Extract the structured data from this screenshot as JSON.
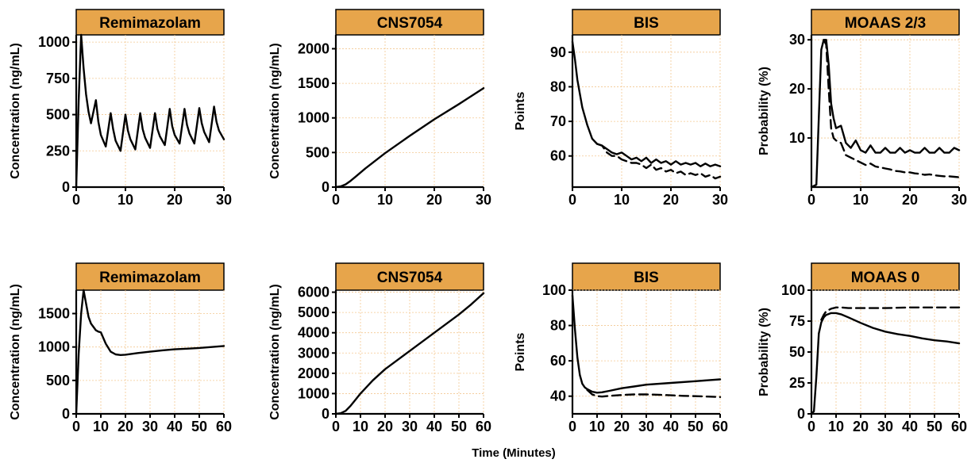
{
  "figure": {
    "xlabel": "Time (Minutes)",
    "strip_color": "#E7A54B",
    "grid_color": "#F3C890"
  },
  "chart_data": [
    {
      "type": "line",
      "title": "Remimazolam",
      "ylabel": "Concentration (ng/mL)",
      "xlim": [
        0,
        30
      ],
      "ylim": [
        0,
        1050
      ],
      "xticks": [
        0,
        10,
        20,
        30
      ],
      "yticks": [
        0,
        250,
        500,
        750,
        1000
      ],
      "xtick_labels": [
        "0",
        "10",
        "20",
        "30"
      ],
      "ytick_labels": [
        "0",
        "250",
        "500",
        "750",
        "1000"
      ],
      "grid": true,
      "series": [
        {
          "style": "solid",
          "x": [
            0,
            0.5,
            1,
            1.5,
            2,
            2.5,
            3,
            4,
            4.5,
            5,
            6,
            7,
            7.5,
            8,
            9,
            10,
            10.5,
            11,
            12,
            13,
            13.5,
            14,
            15,
            16,
            16.5,
            17,
            18,
            19,
            19.5,
            20,
            21,
            22,
            22.5,
            23,
            24,
            25,
            25.5,
            26,
            27,
            28,
            28.5,
            29,
            30
          ],
          "y": [
            0,
            600,
            1050,
            820,
            640,
            520,
            440,
            600,
            450,
            360,
            280,
            510,
            400,
            320,
            250,
            500,
            390,
            330,
            260,
            510,
            400,
            340,
            270,
            510,
            400,
            350,
            290,
            540,
            420,
            360,
            300,
            540,
            430,
            370,
            300,
            545,
            440,
            380,
            310,
            555,
            450,
            390,
            330
          ]
        }
      ]
    },
    {
      "type": "line",
      "title": "CNS7054",
      "ylabel": "Concentration (ng/mL)",
      "xlim": [
        0,
        30
      ],
      "ylim": [
        0,
        2200
      ],
      "xticks": [
        0,
        10,
        20,
        30
      ],
      "yticks": [
        0,
        500,
        1000,
        1500,
        2000
      ],
      "xtick_labels": [
        "0",
        "10",
        "20",
        "30"
      ],
      "ytick_labels": [
        "0",
        "500",
        "1000",
        "1500",
        "2000"
      ],
      "grid": true,
      "series": [
        {
          "style": "solid",
          "x": [
            0,
            1,
            2,
            3,
            4,
            6,
            8,
            10,
            15,
            20,
            25,
            30
          ],
          "y": [
            0,
            10,
            40,
            90,
            150,
            270,
            380,
            490,
            740,
            980,
            1200,
            1430
          ]
        }
      ]
    },
    {
      "type": "line",
      "title": "BIS",
      "ylabel": "Points",
      "xlim": [
        0,
        30
      ],
      "ylim": [
        51,
        95
      ],
      "xticks": [
        0,
        10,
        20,
        30
      ],
      "yticks": [
        60,
        70,
        80,
        90
      ],
      "xtick_labels": [
        "0",
        "10",
        "20",
        "30"
      ],
      "ytick_labels": [
        "60",
        "70",
        "80",
        "90"
      ],
      "grid": true,
      "series": [
        {
          "style": "solid",
          "x": [
            0,
            0.5,
            1,
            1.5,
            2,
            3,
            4,
            5,
            6,
            7,
            8,
            9,
            10,
            11,
            12,
            13,
            14,
            15,
            16,
            17,
            18,
            19,
            20,
            21,
            22,
            23,
            24,
            25,
            26,
            27,
            28,
            29,
            30
          ],
          "y": [
            93,
            88,
            82,
            78,
            74,
            69,
            65,
            63.5,
            63,
            62,
            61,
            60.5,
            61,
            60,
            59,
            59.5,
            58.5,
            59.5,
            58,
            59,
            58,
            58.5,
            57.5,
            58.5,
            57.5,
            58,
            57.5,
            58,
            57,
            57.8,
            57,
            57.5,
            57
          ]
        },
        {
          "style": "dashed",
          "x": [
            5,
            6,
            7,
            8,
            9,
            10,
            11,
            12,
            13,
            14,
            15,
            16,
            17,
            18,
            19,
            20,
            21,
            22,
            23,
            24,
            25,
            26,
            27,
            28,
            29,
            30
          ],
          "y": [
            63.5,
            63,
            61,
            60,
            60,
            59,
            58.5,
            58,
            58,
            57.5,
            56.5,
            57.5,
            56,
            56.5,
            55.5,
            56,
            55,
            55.5,
            54.5,
            55,
            54.5,
            55,
            54,
            54.5,
            53.5,
            54
          ]
        }
      ]
    },
    {
      "type": "line",
      "title": "MOAAS 2/3",
      "ylabel": "Probability (%)",
      "xlim": [
        0,
        30
      ],
      "ylim": [
        0,
        31
      ],
      "xticks": [
        0,
        10,
        20,
        30
      ],
      "yticks": [
        10,
        20,
        30
      ],
      "xtick_labels": [
        "0",
        "10",
        "20",
        "30"
      ],
      "ytick_labels": [
        "10",
        "20",
        "30"
      ],
      "grid": true,
      "series": [
        {
          "style": "solid",
          "x": [
            0,
            1,
            2,
            2.5,
            3,
            3.5,
            4,
            4.5,
            5,
            6,
            7,
            8,
            9,
            10,
            11,
            12,
            13,
            14,
            15,
            16,
            17,
            18,
            19,
            20,
            21,
            22,
            23,
            24,
            25,
            26,
            27,
            28,
            29,
            30
          ],
          "y": [
            0,
            0.5,
            28,
            30,
            30,
            25,
            17,
            14,
            12,
            12.5,
            9,
            8,
            9.5,
            7.5,
            7,
            8.5,
            7,
            7,
            8,
            7,
            7,
            8,
            7,
            7.5,
            7,
            7,
            8,
            7,
            7,
            8,
            7,
            7,
            8,
            7.5
          ]
        },
        {
          "style": "dashed",
          "x": [
            2.5,
            3,
            3.5,
            4,
            4.5,
            5,
            6,
            7,
            8,
            9,
            10,
            11,
            12,
            13,
            14,
            15,
            16,
            17,
            18,
            19,
            20,
            21,
            22,
            23,
            24,
            25,
            26,
            27,
            28,
            29,
            30
          ],
          "y": [
            30,
            29,
            20,
            12,
            10,
            9.5,
            9,
            6.5,
            6,
            5.5,
            5,
            4.5,
            4.8,
            4.2,
            4,
            3.8,
            3.6,
            3.3,
            3.2,
            3,
            3,
            2.8,
            2.7,
            2.5,
            2.6,
            2.4,
            2.3,
            2.2,
            2.2,
            2.1,
            2
          ]
        }
      ]
    },
    {
      "type": "line",
      "title": "Remimazolam",
      "ylabel": "Concentration (ng/mL)",
      "xlim": [
        0,
        60
      ],
      "ylim": [
        0,
        1850
      ],
      "xticks": [
        0,
        10,
        20,
        30,
        40,
        50,
        60
      ],
      "yticks": [
        0,
        500,
        1000,
        1500
      ],
      "xtick_labels": [
        "0",
        "10",
        "20",
        "30",
        "40",
        "50",
        "60"
      ],
      "ytick_labels": [
        "0",
        "500",
        "1000",
        "1500"
      ],
      "grid": true,
      "series": [
        {
          "style": "solid",
          "x": [
            0,
            1,
            2,
            3,
            4,
            5,
            6,
            7,
            8,
            9,
            10,
            12,
            14,
            16,
            18,
            20,
            25,
            30,
            35,
            40,
            45,
            50,
            55,
            60
          ],
          "y": [
            0,
            900,
            1500,
            1850,
            1650,
            1450,
            1350,
            1300,
            1250,
            1230,
            1220,
            1050,
            930,
            890,
            880,
            885,
            910,
            930,
            950,
            965,
            975,
            985,
            1000,
            1015
          ]
        }
      ]
    },
    {
      "type": "line",
      "title": "CNS7054",
      "ylabel": "Concentration (ng/mL)",
      "xlim": [
        0,
        60
      ],
      "ylim": [
        0,
        6100
      ],
      "xticks": [
        0,
        10,
        20,
        30,
        40,
        50,
        60
      ],
      "yticks": [
        0,
        1000,
        2000,
        3000,
        4000,
        5000,
        6000
      ],
      "xtick_labels": [
        "0",
        "10",
        "20",
        "30",
        "40",
        "50",
        "60"
      ],
      "ytick_labels": [
        "0",
        "1000",
        "2000",
        "3000",
        "4000",
        "5000",
        "6000"
      ],
      "grid": true,
      "series": [
        {
          "style": "solid",
          "x": [
            0,
            2,
            4,
            6,
            8,
            10,
            15,
            20,
            25,
            30,
            35,
            40,
            45,
            50,
            55,
            60
          ],
          "y": [
            0,
            30,
            150,
            400,
            700,
            1000,
            1650,
            2200,
            2650,
            3100,
            3550,
            4000,
            4450,
            4900,
            5400,
            5950
          ]
        }
      ]
    },
    {
      "type": "line",
      "title": "BIS",
      "ylabel": "Points",
      "xlim": [
        0,
        60
      ],
      "ylim": [
        30,
        100
      ],
      "xticks": [
        0,
        10,
        20,
        30,
        40,
        50,
        60
      ],
      "yticks": [
        40,
        60,
        80,
        100
      ],
      "xtick_labels": [
        "0",
        "10",
        "20",
        "30",
        "40",
        "50",
        "60"
      ],
      "ytick_labels": [
        "40",
        "60",
        "80",
        "100"
      ],
      "grid": true,
      "series": [
        {
          "style": "solid",
          "x": [
            0,
            1,
            2,
            3,
            4,
            5,
            6,
            8,
            10,
            12,
            15,
            20,
            25,
            30,
            40,
            50,
            60
          ],
          "y": [
            97,
            78,
            62,
            52,
            47,
            45,
            44,
            42.5,
            42,
            42.2,
            43,
            44.5,
            45.5,
            46.5,
            47.5,
            48.5,
            49.5
          ]
        },
        {
          "style": "dashed",
          "x": [
            6,
            8,
            10,
            12,
            15,
            20,
            25,
            30,
            35,
            40,
            45,
            50,
            55,
            60
          ],
          "y": [
            43.5,
            41,
            40,
            39.8,
            40.2,
            40.7,
            41,
            41,
            40.8,
            40.5,
            40.2,
            40,
            39.8,
            39.5
          ]
        }
      ]
    },
    {
      "type": "line",
      "title": "MOAAS 0",
      "ylabel": "Probability (%)",
      "xlim": [
        0,
        60
      ],
      "ylim": [
        0,
        100
      ],
      "xticks": [
        0,
        10,
        20,
        30,
        40,
        50,
        60
      ],
      "yticks": [
        0,
        25,
        50,
        75,
        100
      ],
      "xtick_labels": [
        "0",
        "10",
        "20",
        "30",
        "40",
        "50",
        "60"
      ],
      "ytick_labels": [
        "0",
        "25",
        "50",
        "75",
        "100"
      ],
      "grid": true,
      "series": [
        {
          "style": "solid",
          "x": [
            0,
            1,
            2,
            3,
            4,
            5,
            6,
            8,
            10,
            12,
            15,
            20,
            25,
            30,
            35,
            40,
            45,
            50,
            55,
            60
          ],
          "y": [
            0,
            2,
            30,
            65,
            74,
            78,
            80,
            81.5,
            81.5,
            80.5,
            78,
            73.5,
            69.5,
            66.5,
            64.5,
            63,
            61,
            59.5,
            58.5,
            57
          ]
        },
        {
          "style": "dashed",
          "x": [
            4,
            5,
            6,
            8,
            10,
            12,
            15,
            20,
            25,
            30,
            40,
            50,
            60
          ],
          "y": [
            76,
            80,
            83,
            85,
            86,
            86,
            85.5,
            85.5,
            85.5,
            85.5,
            86,
            86,
            86
          ]
        }
      ]
    }
  ]
}
